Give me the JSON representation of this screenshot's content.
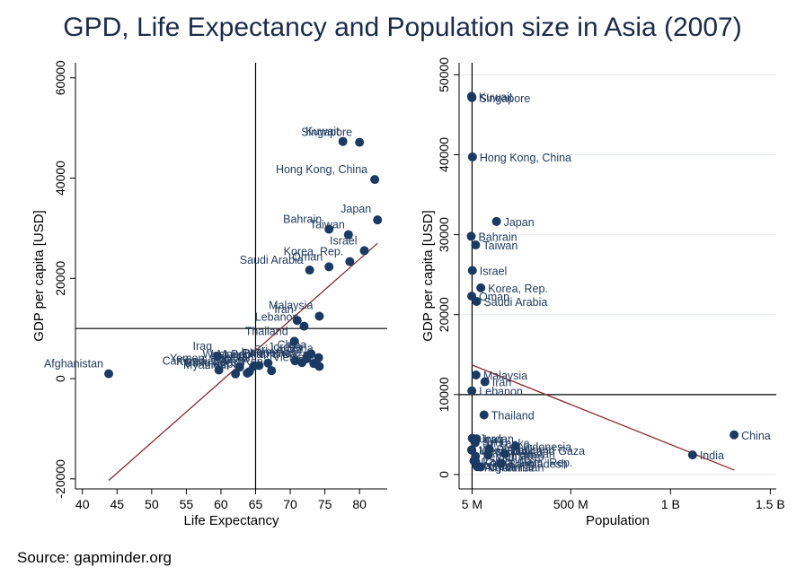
{
  "title": "GPD, Life Expectancy and Population size in Asia (2007)",
  "source": "Source: gapminder.org",
  "colors": {
    "marker": "#1a3a63",
    "label": "#1f3a5f",
    "fit": "#8b2a2a",
    "grid": "#e6eaf0",
    "axis": "#000000"
  },
  "chart_data": [
    {
      "type": "scatter",
      "xlabel": "Life Expectancy",
      "ylabel": "GDP per capita [USD]",
      "xlim": [
        39,
        84
      ],
      "ylim": [
        -22000,
        63000
      ],
      "xticks": [
        40,
        45,
        50,
        55,
        60,
        65,
        70,
        75,
        80
      ],
      "yticks": [
        -20000,
        0,
        20000,
        40000,
        60000
      ],
      "ref_lines": {
        "x": 65,
        "y": 10000
      },
      "fit_line": {
        "x": [
          43.8,
          82.6
        ],
        "y": [
          -20300,
          27000
        ]
      },
      "points": [
        {
          "country": "Afghanistan",
          "x": 43.8,
          "y": 974
        },
        {
          "country": "Bahrain",
          "x": 75.6,
          "y": 29796
        },
        {
          "country": "Bangladesh",
          "x": 64.1,
          "y": 1391
        },
        {
          "country": "Cambodia",
          "x": 59.7,
          "y": 1714
        },
        {
          "country": "China",
          "x": 73.0,
          "y": 4959
        },
        {
          "country": "Hong Kong, China",
          "x": 82.2,
          "y": 39725
        },
        {
          "country": "India",
          "x": 64.7,
          "y": 2452
        },
        {
          "country": "Indonesia",
          "x": 70.7,
          "y": 3541
        },
        {
          "country": "Iran",
          "x": 71.0,
          "y": 11606
        },
        {
          "country": "Iraq",
          "x": 59.5,
          "y": 4471
        },
        {
          "country": "Israel",
          "x": 80.7,
          "y": 25523
        },
        {
          "country": "Japan",
          "x": 82.6,
          "y": 31656
        },
        {
          "country": "Jordan",
          "x": 72.5,
          "y": 4519
        },
        {
          "country": "Korea, Dem. Rep.",
          "x": 67.3,
          "y": 1593
        },
        {
          "country": "Korea, Rep.",
          "x": 78.6,
          "y": 23348
        },
        {
          "country": "Kuwait",
          "x": 77.6,
          "y": 47307
        },
        {
          "country": "Lebanon",
          "x": 72.0,
          "y": 10461
        },
        {
          "country": "Malaysia",
          "x": 74.2,
          "y": 12452
        },
        {
          "country": "Mongolia",
          "x": 66.8,
          "y": 3096
        },
        {
          "country": "Myanmar",
          "x": 62.1,
          "y": 944
        },
        {
          "country": "Nepal",
          "x": 63.8,
          "y": 1091
        },
        {
          "country": "Oman",
          "x": 75.6,
          "y": 22316
        },
        {
          "country": "Pakistan",
          "x": 65.5,
          "y": 2606
        },
        {
          "country": "Philippines",
          "x": 71.7,
          "y": 3190
        },
        {
          "country": "Saudi Arabia",
          "x": 72.8,
          "y": 21655
        },
        {
          "country": "Singapore",
          "x": 80.0,
          "y": 47143
        },
        {
          "country": "Sri Lanka",
          "x": 72.4,
          "y": 3970
        },
        {
          "country": "Syria",
          "x": 74.1,
          "y": 4185
        },
        {
          "country": "Taiwan",
          "x": 78.4,
          "y": 28718
        },
        {
          "country": "Thailand",
          "x": 70.6,
          "y": 7458
        },
        {
          "country": "Vietnam",
          "x": 74.2,
          "y": 2442
        },
        {
          "country": "West Bank and Gaza",
          "x": 73.4,
          "y": 3025
        },
        {
          "country": "Yemen, Rep.",
          "x": 62.7,
          "y": 2281
        }
      ]
    },
    {
      "type": "scatter",
      "xlabel": "Population",
      "ylabel": "GDP per capita [USD]",
      "xlim": [
        -60000000,
        1530000000
      ],
      "ylim": [
        -1800000,
        51500000
      ],
      "xticks": [
        5000000,
        500000000,
        1000000000,
        1500000000
      ],
      "xticklabels": [
        "5 M",
        "500 M",
        "1 B",
        "1.5 B"
      ],
      "yticks": [
        0,
        10000,
        20000,
        30000,
        40000,
        50000
      ],
      "y_scale_note": "same data units as left panel",
      "ref_lines": {
        "x": 5000000,
        "y": 10000
      },
      "fit_line": {
        "x": [
          5000000,
          1320000000
        ],
        "y": [
          13700,
          550
        ]
      },
      "points": [
        {
          "country": "Kuwait",
          "x": 2500000,
          "y": 47307
        },
        {
          "country": "Singapore",
          "x": 4500000,
          "y": 47143
        },
        {
          "country": "Hong Kong, China",
          "x": 6980000,
          "y": 39725
        },
        {
          "country": "Japan",
          "x": 127470000,
          "y": 31656
        },
        {
          "country": "Bahrain",
          "x": 708000,
          "y": 29796
        },
        {
          "country": "Taiwan",
          "x": 22900000,
          "y": 28718
        },
        {
          "country": "Israel",
          "x": 6430000,
          "y": 25523
        },
        {
          "country": "Korea, Rep.",
          "x": 49040000,
          "y": 23348
        },
        {
          "country": "Oman",
          "x": 3200000,
          "y": 22316
        },
        {
          "country": "Saudi Arabia",
          "x": 27600000,
          "y": 21655
        },
        {
          "country": "Malaysia",
          "x": 24800000,
          "y": 12452
        },
        {
          "country": "Iran",
          "x": 69450000,
          "y": 11606
        },
        {
          "country": "Lebanon",
          "x": 3920000,
          "y": 10461
        },
        {
          "country": "Thailand",
          "x": 65070000,
          "y": 7458
        },
        {
          "country": "China",
          "x": 1318680000,
          "y": 4959
        },
        {
          "country": "India",
          "x": 1110400000,
          "y": 2452
        },
        {
          "country": "Jordan",
          "x": 6050000,
          "y": 4519
        },
        {
          "country": "Iraq",
          "x": 27500000,
          "y": 4471
        },
        {
          "country": "Syria",
          "x": 19300000,
          "y": 4185
        },
        {
          "country": "Sri Lanka",
          "x": 20400000,
          "y": 3970
        },
        {
          "country": "Indonesia",
          "x": 223500000,
          "y": 3541
        },
        {
          "country": "Philippines",
          "x": 91080000,
          "y": 3190
        },
        {
          "country": "Mongolia",
          "x": 2870000,
          "y": 3096
        },
        {
          "country": "West Bank and Gaza",
          "x": 4020000,
          "y": 3025
        },
        {
          "country": "Pakistan",
          "x": 169270000,
          "y": 2606
        },
        {
          "country": "Vietnam",
          "x": 85260000,
          "y": 2442
        },
        {
          "country": "Yemen, Rep.",
          "x": 22200000,
          "y": 2281
        },
        {
          "country": "Cambodia",
          "x": 14130000,
          "y": 1714
        },
        {
          "country": "Korea, Dem. Rep.",
          "x": 23300000,
          "y": 1593
        },
        {
          "country": "Bangladesh",
          "x": 150450000,
          "y": 1391
        },
        {
          "country": "Nepal",
          "x": 28900000,
          "y": 1091
        },
        {
          "country": "Afghanistan",
          "x": 31890000,
          "y": 974
        },
        {
          "country": "Myanmar",
          "x": 47760000,
          "y": 944
        }
      ]
    }
  ]
}
